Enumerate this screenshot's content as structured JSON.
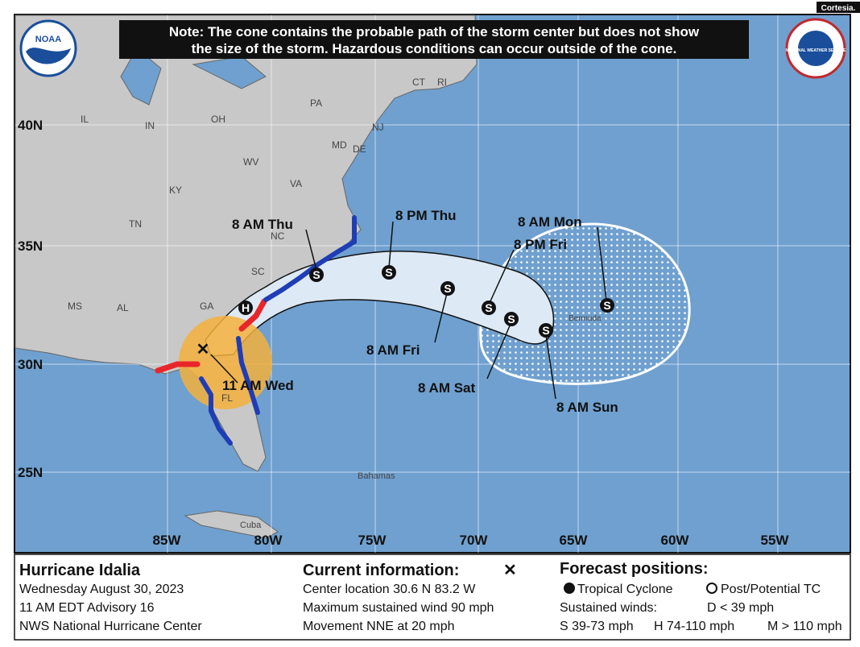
{
  "credit": "Cortesia.",
  "note": [
    "Note: The cone contains the probable path of the storm center but does not show",
    "the size of the storm. Hazardous conditions can occur outside of the cone."
  ],
  "logos": {
    "noaa": "NOAA",
    "nws": "NATIONAL WEATHER SERVICE"
  },
  "map": {
    "lat_labels": [
      "40N",
      "35N",
      "30N",
      "25N"
    ],
    "lon_labels": [
      "85W",
      "80W",
      "75W",
      "70W",
      "65W",
      "60W",
      "55W"
    ],
    "places": [
      "IL",
      "IN",
      "OH",
      "PA",
      "CT",
      "RI",
      "NJ",
      "MD",
      "DE",
      "WV",
      "VA",
      "KY",
      "TN",
      "NC",
      "SC",
      "GA",
      "AL",
      "MS",
      "FL",
      "Bermuda",
      "Bahamas",
      "Cuba"
    ],
    "current_label": "11 AM Wed",
    "hurricane_symbol": "H",
    "forecast_points": [
      {
        "symbol": "S",
        "label": "8 AM Thu"
      },
      {
        "symbol": "S",
        "label": "8 PM Thu"
      },
      {
        "symbol": "S",
        "label": "8 AM Fri"
      },
      {
        "symbol": "S",
        "label": "8 PM Fri"
      },
      {
        "symbol": "S",
        "label": "8 AM Sat"
      },
      {
        "symbol": "S",
        "label": "8 AM Sun"
      },
      {
        "symbol": "S",
        "label": "8 AM Mon"
      }
    ]
  },
  "legend": {
    "storm": {
      "title": "Hurricane Idalia",
      "lines": [
        "Wednesday August 30, 2023",
        "11 AM EDT Advisory 16",
        "NWS National Hurricane Center"
      ]
    },
    "current": {
      "title": "Current information:",
      "symbol": "✕",
      "lines": [
        "Center location 30.6 N 83.2 W",
        "Maximum sustained wind 90 mph",
        "Movement NNE at 20 mph"
      ]
    },
    "forecast": {
      "title": "Forecast positions:",
      "tropical": "Tropical Cyclone",
      "post": "Post/Potential TC",
      "winds": "Sustained winds:",
      "d": "D < 39 mph",
      "s": "S 39-73 mph",
      "h": "H 74-110 mph",
      "m": "M > 110 mph"
    }
  }
}
